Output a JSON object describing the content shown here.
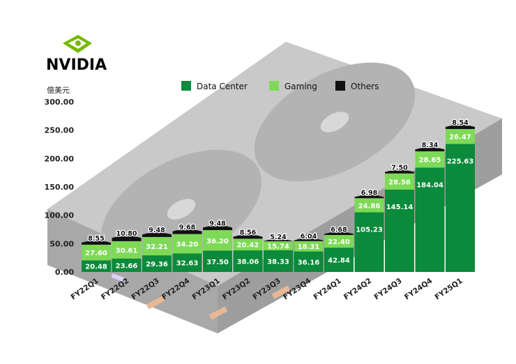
{
  "logo": {
    "text": "NVIDIA",
    "color": "#76b900"
  },
  "chart_data": {
    "type": "bar",
    "stacked": true,
    "ylabel": "億美元",
    "ylim": [
      0,
      300
    ],
    "yticks": [
      "0.00",
      "50.00",
      "100.00",
      "150.00",
      "200.00",
      "250.00",
      "300.00"
    ],
    "categories": [
      "FY22Q1",
      "FY22Q2",
      "FY22Q3",
      "FY22Q4",
      "FY23Q1",
      "FY23Q2",
      "FY23Q3",
      "FY23Q4",
      "FY24Q1",
      "FY24Q2",
      "FY24Q3",
      "FY24Q4",
      "FY25Q1"
    ],
    "series": [
      {
        "name": "Data Center",
        "color": "#0a8a3a",
        "values": [
          20.48,
          23.66,
          29.36,
          32.63,
          37.5,
          38.06,
          38.33,
          36.16,
          42.84,
          105.23,
          145.14,
          184.04,
          225.63
        ],
        "labels": [
          "20.48",
          "23.66",
          "29.36",
          "32.63",
          "37.50",
          "38.06",
          "38.33",
          "36.16",
          "42.84",
          "105.23",
          "145.14",
          "184.04",
          "225.63"
        ]
      },
      {
        "name": "Gaming",
        "color": "#7ed957",
        "values": [
          27.6,
          30.61,
          32.21,
          34.2,
          36.2,
          20.42,
          15.74,
          18.31,
          22.4,
          24.86,
          28.56,
          28.65,
          26.47
        ],
        "labels": [
          "27.60",
          "30.61",
          "32.21",
          "34.20",
          "36.20",
          "20.42",
          "15.74",
          "18.31",
          "22.40",
          "24.86",
          "28.56",
          "28.65",
          "26.47"
        ]
      },
      {
        "name": "Others",
        "color": "#111111",
        "values": [
          8.55,
          10.8,
          9.48,
          9.68,
          9.48,
          8.56,
          5.24,
          6.04,
          6.68,
          6.98,
          7.5,
          8.34,
          8.54
        ],
        "labels": [
          "8.55",
          "10.80",
          "9.48",
          "9.68",
          "9.48",
          "8.56",
          "5.24",
          "6.04",
          "6.68",
          "6.98",
          "7.50",
          "8.34",
          "8.54"
        ]
      }
    ],
    "legend_position": "top",
    "grid": false
  }
}
